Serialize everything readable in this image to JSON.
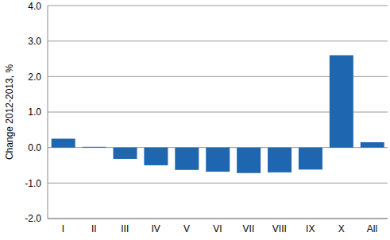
{
  "chart_data": {
    "type": "bar",
    "y_label": "Change 2012-2013, %",
    "categories": [
      "I",
      "II",
      "III",
      "IV",
      "V",
      "VI",
      "VII",
      "VIII",
      "IX",
      "X",
      "All"
    ],
    "values": [
      0.25,
      0.02,
      -0.32,
      -0.5,
      -0.63,
      -0.68,
      -0.72,
      -0.7,
      -0.62,
      2.6,
      0.15
    ],
    "color": "#1f66b0",
    "ylim": [
      -2,
      4
    ],
    "yticks": [
      {
        "value": -2,
        "label": "-2.0"
      },
      {
        "value": -1,
        "label": "-1.0"
      },
      {
        "value": 0,
        "label": "0.0"
      },
      {
        "value": 1,
        "label": "1.0"
      },
      {
        "value": 2,
        "label": "2.0"
      },
      {
        "value": 3,
        "label": "3.0"
      },
      {
        "value": 4,
        "label": "4.0"
      }
    ],
    "grid": true
  }
}
